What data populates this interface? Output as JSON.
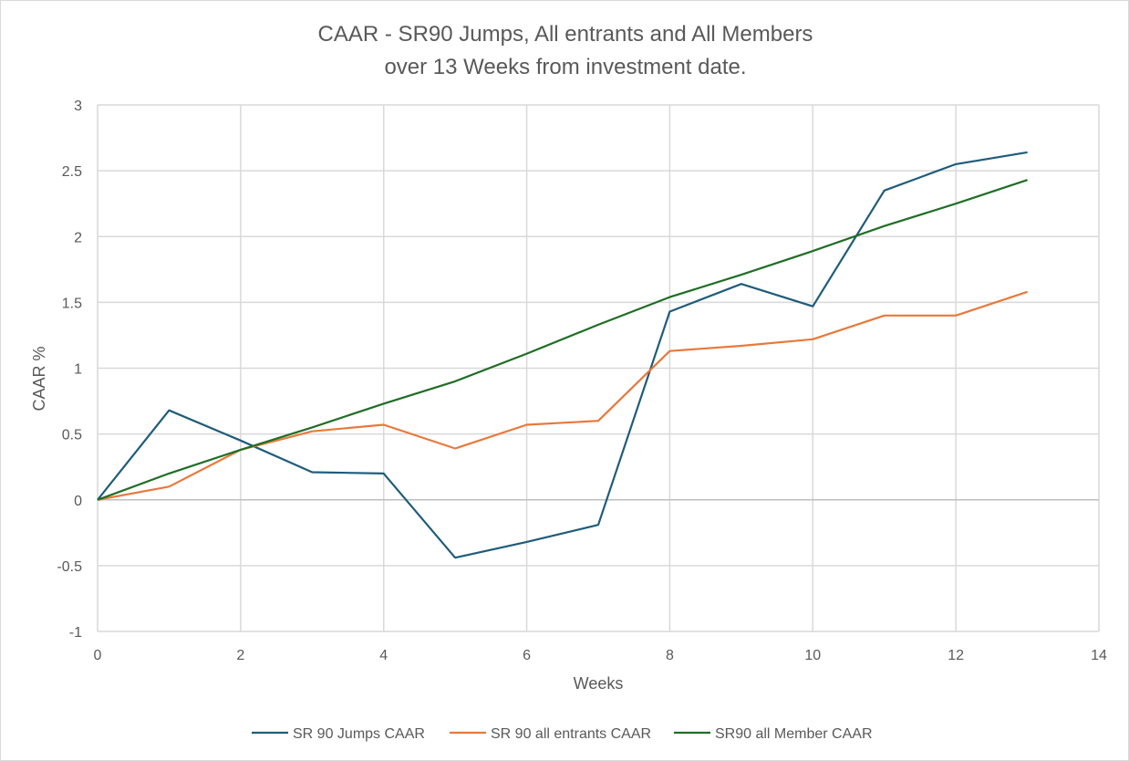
{
  "chart_data": {
    "type": "line",
    "title": [
      "CAAR - SR90 Jumps, All entrants and All Members",
      "over 13 Weeks from investment date."
    ],
    "xlabel": "Weeks",
    "ylabel": "CAAR %",
    "xlim": [
      0,
      14
    ],
    "ylim": [
      -1,
      3
    ],
    "x_ticks": [
      0,
      2,
      4,
      6,
      8,
      10,
      12,
      14
    ],
    "y_ticks": [
      -1,
      -0.5,
      0,
      0.5,
      1,
      1.5,
      2,
      2.5,
      3
    ],
    "grid": true,
    "legend_position": "bottom",
    "x": [
      0,
      1,
      2,
      3,
      4,
      5,
      6,
      7,
      8,
      9,
      10,
      11,
      12,
      13
    ],
    "series": [
      {
        "name": "SR 90 Jumps CAAR",
        "color": "#1f5c7a",
        "values": [
          0,
          0.68,
          0.45,
          0.21,
          0.2,
          -0.44,
          -0.32,
          -0.19,
          1.43,
          1.64,
          1.47,
          2.35,
          2.55,
          2.64
        ]
      },
      {
        "name": "SR 90 all entrants CAAR",
        "color": "#e8793b",
        "values": [
          0,
          0.1,
          0.38,
          0.52,
          0.57,
          0.39,
          0.57,
          0.6,
          1.13,
          1.17,
          1.22,
          1.4,
          1.4,
          1.58
        ]
      },
      {
        "name": "SR90 all Member CAAR",
        "color": "#1f6e25",
        "values": [
          0,
          0.2,
          0.38,
          0.55,
          0.73,
          0.9,
          1.11,
          1.33,
          1.54,
          1.71,
          1.89,
          2.08,
          2.25,
          2.43
        ]
      }
    ]
  }
}
